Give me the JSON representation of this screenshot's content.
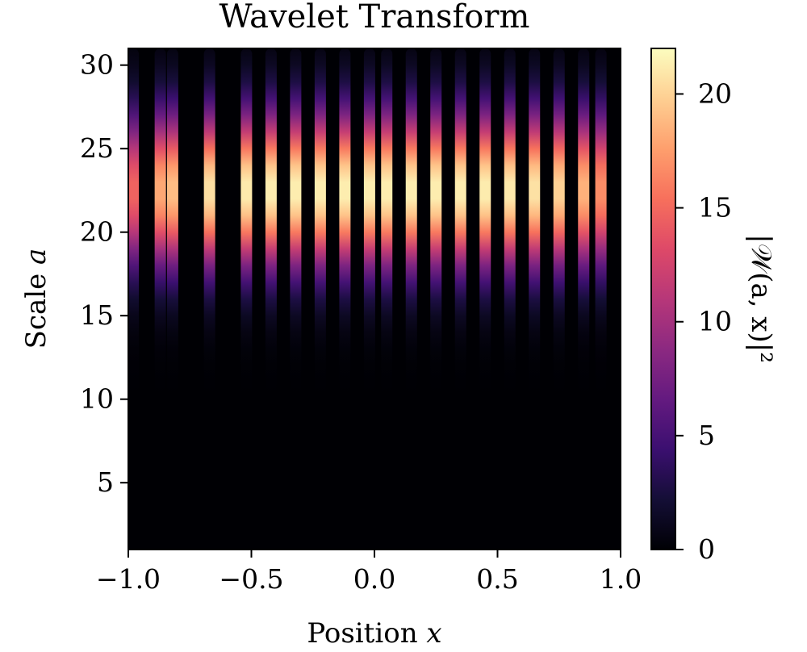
{
  "chart_data": {
    "type": "heatmap",
    "title": "Wavelet Transform",
    "xlabel": "Position",
    "xlabel_var": "x",
    "ylabel": "Scale",
    "ylabel_var": "a",
    "colorbar_label": "|𝒲(a, x)|²",
    "colormap": "magma",
    "xlim": [
      -1.0,
      1.0
    ],
    "ylim": [
      1,
      31
    ],
    "clim": [
      0,
      22
    ],
    "x_ticks": [
      -1.0,
      -0.5,
      0.0,
      0.5,
      1.0
    ],
    "x_tick_labels": [
      "−1.0",
      "−0.5",
      "0.0",
      "0.5",
      "1.0"
    ],
    "y_ticks": [
      5,
      10,
      15,
      20,
      25,
      30
    ],
    "y_tick_labels": [
      "5",
      "10",
      "15",
      "20",
      "25",
      "30"
    ],
    "colorbar_ticks": [
      0,
      5,
      10,
      15,
      20
    ],
    "colorbar_tick_labels": [
      "0",
      "5",
      "10",
      "15",
      "20"
    ],
    "peak_scale": 22.5,
    "scale_spread": 3.2,
    "peak_value": 21.5,
    "stripe_count": 20,
    "stripe_positions": [
      -0.98,
      -0.87,
      -0.82,
      -0.67,
      -0.52,
      -0.42,
      -0.32,
      -0.22,
      -0.12,
      -0.02,
      0.05,
      0.15,
      0.25,
      0.35,
      0.45,
      0.55,
      0.65,
      0.75,
      0.85,
      0.92
    ]
  }
}
